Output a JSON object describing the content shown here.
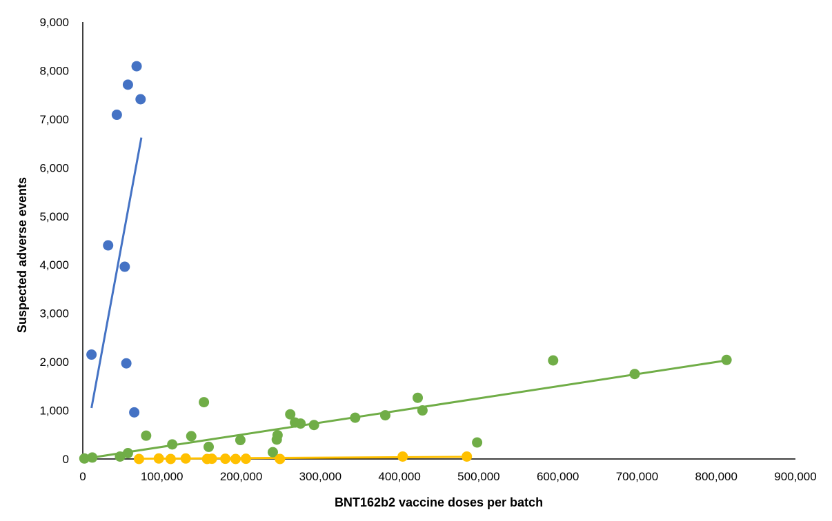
{
  "chart_data": {
    "type": "scatter",
    "title": "",
    "xlabel": "BNT162b2 vaccine doses per batch",
    "ylabel": "Suspected adverse events",
    "xlim": [
      0,
      900000
    ],
    "ylim": [
      0,
      9000
    ],
    "x_ticks": [
      0,
      100000,
      200000,
      300000,
      400000,
      500000,
      600000,
      700000,
      800000,
      900000
    ],
    "y_ticks": [
      0,
      1000,
      2000,
      3000,
      4000,
      5000,
      6000,
      7000,
      8000,
      9000
    ],
    "x_tick_labels": [
      "0",
      "100,000",
      "200,000",
      "300,000",
      "400,000",
      "500,000",
      "600,000",
      "700,000",
      "800,000",
      "900,000"
    ],
    "y_tick_labels": [
      "0",
      "1,000",
      "2,000",
      "3,000",
      "4,000",
      "5,000",
      "6,000",
      "7,000",
      "8,000",
      "9,000"
    ],
    "grid": false,
    "legend": "none",
    "series": [
      {
        "color": "#4472C4",
        "points": [
          [
            11000,
            2150
          ],
          [
            32000,
            4400
          ],
          [
            43000,
            7090
          ],
          [
            53000,
            3960
          ],
          [
            55000,
            1970
          ],
          [
            57000,
            7710
          ],
          [
            65000,
            960
          ],
          [
            68000,
            8090
          ],
          [
            73000,
            7410
          ]
        ],
        "trendline": [
          [
            11000,
            1050
          ],
          [
            74000,
            6620
          ]
        ]
      },
      {
        "color": "#70AD47",
        "points": [
          [
            2000,
            10
          ],
          [
            12000,
            30
          ],
          [
            47000,
            50
          ],
          [
            57000,
            120
          ],
          [
            80000,
            480
          ],
          [
            113000,
            300
          ],
          [
            137000,
            470
          ],
          [
            153000,
            1170
          ],
          [
            159000,
            250
          ],
          [
            199000,
            390
          ],
          [
            240000,
            140
          ],
          [
            245000,
            400
          ],
          [
            246000,
            490
          ],
          [
            262000,
            920
          ],
          [
            268000,
            750
          ],
          [
            275000,
            730
          ],
          [
            292000,
            700
          ],
          [
            344000,
            850
          ],
          [
            382000,
            900
          ],
          [
            423000,
            1260
          ],
          [
            429000,
            1000
          ],
          [
            498000,
            340
          ],
          [
            594000,
            2030
          ],
          [
            697000,
            1750
          ],
          [
            813000,
            2040
          ]
        ],
        "trendline": [
          [
            0,
            0
          ],
          [
            813000,
            2030
          ]
        ]
      },
      {
        "color": "#FFC000",
        "points": [
          [
            71000,
            0
          ],
          [
            96000,
            10
          ],
          [
            111000,
            0
          ],
          [
            130000,
            10
          ],
          [
            157000,
            0
          ],
          [
            163000,
            5
          ],
          [
            180000,
            5
          ],
          [
            193000,
            0
          ],
          [
            206000,
            5
          ],
          [
            249000,
            0
          ],
          [
            404000,
            50
          ],
          [
            485000,
            50
          ]
        ],
        "trendline": [
          [
            71000,
            5
          ],
          [
            485000,
            45
          ]
        ]
      }
    ]
  }
}
